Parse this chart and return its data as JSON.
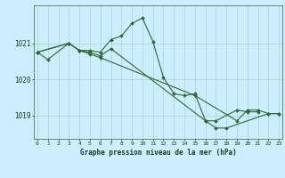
{
  "title": "Graphe pression niveau de la mer (hPa)",
  "line_color": "#2d6a2d",
  "background_color": "#cceeff",
  "grid_color": "#aad4d4",
  "series": [
    {
      "x": [
        0,
        1,
        3,
        4,
        5,
        6,
        7,
        8,
        9,
        10,
        11,
        12,
        13,
        14,
        15,
        16,
        17,
        19,
        20,
        21
      ],
      "y": [
        1020.75,
        1020.55,
        1021.0,
        1020.8,
        1020.8,
        1020.75,
        1021.1,
        1021.2,
        1021.55,
        1021.7,
        1021.05,
        1020.05,
        1019.6,
        1019.55,
        1019.6,
        1018.85,
        1018.85,
        1019.15,
        1019.1,
        1019.1
      ]
    },
    {
      "x": [
        0,
        3,
        4,
        5,
        6,
        7,
        16,
        17,
        18,
        22,
        23
      ],
      "y": [
        1020.75,
        1021.0,
        1020.8,
        1020.75,
        1020.65,
        1020.85,
        1018.85,
        1018.65,
        1018.65,
        1019.05,
        1019.05
      ]
    },
    {
      "x": [
        0,
        3,
        4,
        5,
        6,
        15,
        19,
        20,
        21,
        22,
        23
      ],
      "y": [
        1020.75,
        1021.0,
        1020.8,
        1020.7,
        1020.6,
        1019.55,
        1018.85,
        1019.15,
        1019.15,
        1019.05,
        1019.05
      ]
    }
  ],
  "yticks": [
    1019,
    1020,
    1021
  ],
  "xticks": [
    0,
    1,
    2,
    3,
    4,
    5,
    6,
    7,
    8,
    9,
    10,
    11,
    12,
    13,
    14,
    15,
    16,
    17,
    18,
    19,
    20,
    21,
    22,
    23
  ],
  "xlim": [
    -0.3,
    23.3
  ],
  "ylim": [
    1018.35,
    1022.05
  ],
  "marker": "D",
  "markersize": 2.0,
  "linewidth": 0.8
}
